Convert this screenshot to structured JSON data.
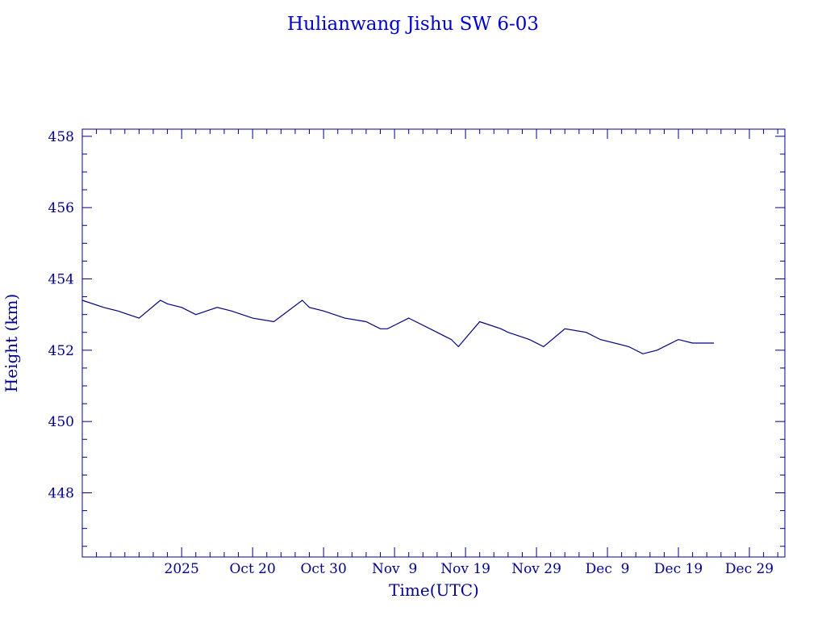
{
  "chart_data": {
    "type": "line",
    "title": "Hulianwang Jishu SW 6-03",
    "xlabel": "Time(UTC)",
    "ylabel": "Height (km)",
    "x_ticks": [
      "2025",
      "Oct 20",
      "Oct 30",
      "Nov  9",
      "Nov 19",
      "Nov 29",
      "Dec  9",
      "Dec 19",
      "Dec 29"
    ],
    "y_ticks": [
      448,
      450,
      452,
      454,
      456,
      458
    ],
    "xlim": [
      "2025-09-26",
      "2026-01-03"
    ],
    "ylim": [
      446.2,
      458.2
    ],
    "grid": false,
    "colors": {
      "axis": "#00008b",
      "text": "#00008b",
      "title": "#0000cd",
      "line": "#000080"
    },
    "series": [
      {
        "x": [
          "2025-09-26",
          "2025-09-29",
          "2025-10-01",
          "2025-10-04",
          "2025-10-07",
          "2025-10-08",
          "2025-10-10",
          "2025-10-12",
          "2025-10-15",
          "2025-10-17",
          "2025-10-20",
          "2025-10-23",
          "2025-10-27",
          "2025-10-28",
          "2025-10-30",
          "2025-11-02",
          "2025-11-05",
          "2025-11-07",
          "2025-11-08",
          "2025-11-09",
          "2025-11-11",
          "2025-11-15",
          "2025-11-16",
          "2025-11-17",
          "2025-11-18",
          "2025-11-21",
          "2025-11-24",
          "2025-11-25",
          "2025-11-28",
          "2025-11-30",
          "2025-12-03",
          "2025-12-06",
          "2025-12-08",
          "2025-12-12",
          "2025-12-14",
          "2025-12-16",
          "2025-12-19",
          "2025-12-21",
          "2025-12-24"
        ],
        "y": [
          453.4,
          453.2,
          453.1,
          452.9,
          453.4,
          453.3,
          453.2,
          453.0,
          453.2,
          453.1,
          452.9,
          452.8,
          453.4,
          453.2,
          453.1,
          452.9,
          452.8,
          452.6,
          452.6,
          452.7,
          452.9,
          452.5,
          452.4,
          452.3,
          452.1,
          452.8,
          452.6,
          452.5,
          452.3,
          452.1,
          452.6,
          452.5,
          452.3,
          452.1,
          451.9,
          452.0,
          452.3,
          452.2,
          452.2
        ]
      }
    ]
  }
}
